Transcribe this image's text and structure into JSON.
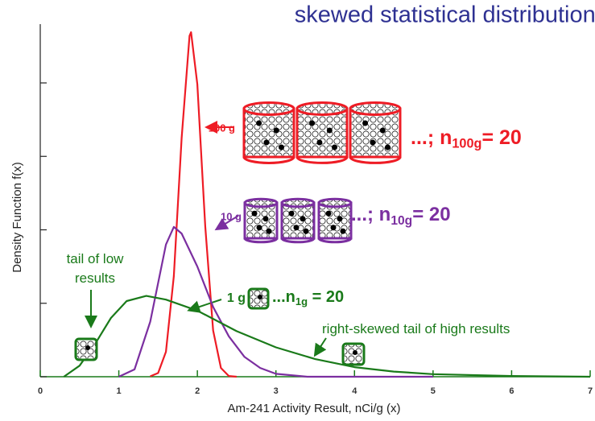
{
  "chart_data": {
    "type": "line",
    "title": "skewed statistical distributions",
    "xlabel": "Am-241 Activity Result, nCi/g (x)",
    "ylabel": "Density Function f(x)",
    "xlim": [
      0,
      7
    ],
    "ylim": [
      0,
      4.8
    ],
    "xticks": [
      0,
      1,
      2,
      3,
      4,
      5,
      6,
      7
    ],
    "yticks": [
      0,
      1,
      2,
      3,
      4
    ],
    "series": [
      {
        "name": "100 g",
        "color": "#ee1c25",
        "x": [
          1.4,
          1.5,
          1.6,
          1.7,
          1.8,
          1.9,
          1.92,
          2.0,
          2.1,
          2.2,
          2.3,
          2.4,
          2.5
        ],
        "values": [
          0.005,
          0.05,
          0.34,
          1.37,
          3.25,
          4.64,
          4.69,
          3.98,
          2.05,
          0.63,
          0.12,
          0.01,
          0
        ]
      },
      {
        "name": "10 g",
        "color": "#7b2fa0",
        "x": [
          1.0,
          1.2,
          1.4,
          1.6,
          1.7,
          1.8,
          2.0,
          2.2,
          2.4,
          2.6,
          2.8,
          3.0,
          3.4,
          5.0
        ],
        "values": [
          0,
          0.1,
          0.75,
          1.8,
          2.04,
          1.95,
          1.5,
          0.95,
          0.55,
          0.27,
          0.12,
          0.04,
          0,
          0
        ]
      },
      {
        "name": "1 g",
        "color": "#1a7a1a",
        "x": [
          0.3,
          0.5,
          0.7,
          0.9,
          1.1,
          1.35,
          1.6,
          2.0,
          2.5,
          3.0,
          3.5,
          4.0,
          4.5,
          5.0,
          6.0,
          7.0
        ],
        "values": [
          0,
          0.15,
          0.45,
          0.8,
          1.03,
          1.1,
          1.05,
          0.9,
          0.62,
          0.4,
          0.24,
          0.13,
          0.07,
          0.035,
          0.01,
          0
        ]
      }
    ],
    "annotations": [
      {
        "text": "...; n",
        "sub": "100g",
        "tail": "= 20"
      },
      {
        "text": "...; n",
        "sub": "10g",
        "tail": "= 20"
      },
      {
        "text": "...n",
        "sub": "1g",
        "tail": " = 20"
      },
      {
        "text": "tail of low"
      },
      {
        "text": "results"
      },
      {
        "text": "right-skewed tail of high results"
      }
    ]
  }
}
